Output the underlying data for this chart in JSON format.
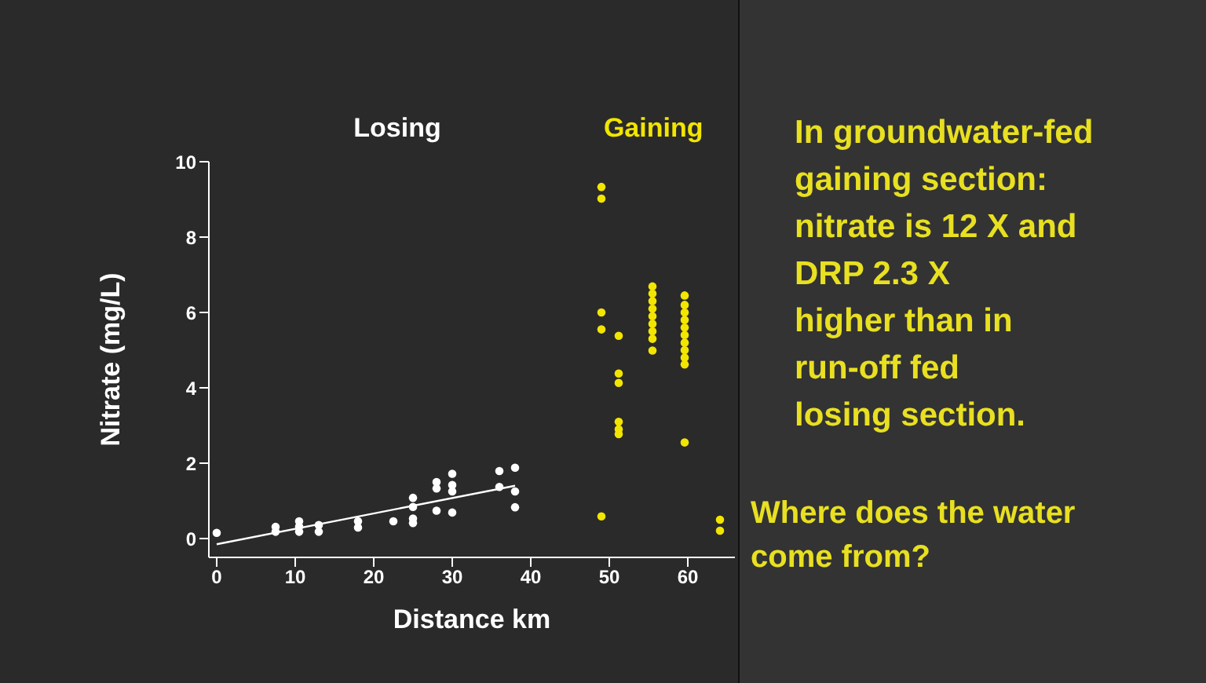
{
  "chart_data": {
    "type": "scatter",
    "xlabel": "Distance km",
    "ylabel": "Nitrate (mg/L)",
    "xlim": [
      -1,
      66
    ],
    "ylim": [
      -0.5,
      10
    ],
    "xticks": [
      0,
      10,
      20,
      30,
      40,
      50,
      60
    ],
    "yticks": [
      0,
      2,
      4,
      6,
      8,
      10
    ],
    "grid": false,
    "legend": false,
    "series": [
      {
        "name": "Losing",
        "color": "#ffffff",
        "marker": "circle",
        "x": [
          0,
          7.5,
          7.5,
          10.5,
          10.5,
          10.5,
          13,
          13,
          18,
          18,
          22.5,
          25,
          25,
          25,
          25,
          28,
          28,
          28,
          30,
          30,
          30,
          30,
          36,
          36,
          38,
          38,
          38
        ],
        "values": [
          0.15,
          0.31,
          0.18,
          0.46,
          0.32,
          0.18,
          0.36,
          0.18,
          0.46,
          0.29,
          0.46,
          1.08,
          0.84,
          0.53,
          0.41,
          1.5,
          1.33,
          0.74,
          1.72,
          1.42,
          1.25,
          0.69,
          1.79,
          1.37,
          1.88,
          1.25,
          0.83
        ]
      },
      {
        "name": "Gaining",
        "color": "#f2e500",
        "marker": "circle",
        "x": [
          49,
          49,
          49,
          49,
          49,
          51.2,
          51.2,
          51.2,
          51.2,
          51.2,
          51.2,
          55.5,
          55.5,
          55.5,
          55.5,
          55.5,
          55.5,
          55.5,
          55.5,
          55.5,
          59.6,
          59.6,
          59.6,
          59.6,
          59.6,
          59.6,
          59.6,
          59.6,
          59.6,
          59.6,
          59.6,
          64.1,
          64.1
        ],
        "values": [
          9.33,
          9.02,
          6.0,
          5.55,
          0.59,
          5.38,
          4.38,
          4.13,
          3.1,
          2.9,
          2.77,
          6.69,
          6.5,
          6.3,
          6.1,
          5.9,
          5.7,
          5.5,
          5.3,
          4.99,
          6.45,
          6.2,
          6.0,
          5.8,
          5.6,
          5.4,
          5.2,
          5.0,
          4.8,
          4.62,
          2.55,
          0.5,
          0.21
        ]
      },
      {
        "type": "line",
        "color": "#ffffff",
        "x": [
          0,
          38
        ],
        "values": [
          -0.15,
          1.4
        ]
      }
    ],
    "annotations": [
      "In groundwater-fed\ngaining section:\nnitrate is 12 X and\nDRP 2.3 X\nhigher than in\nrun-off fed\nlosing section.",
      "Where does the water\ncome from?"
    ]
  }
}
